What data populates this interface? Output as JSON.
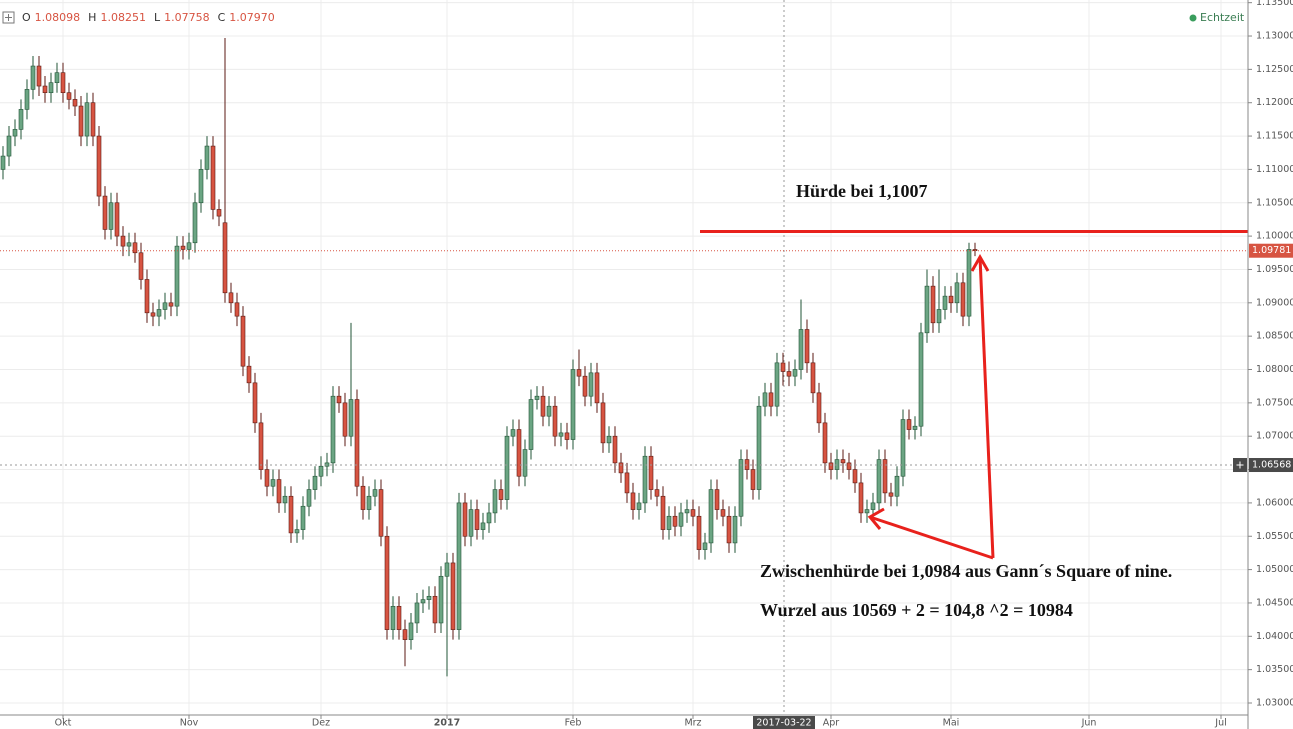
{
  "chart_data": {
    "type": "candlestick",
    "ohlc": [
      {
        "name": "O",
        "label": "1.08098"
      },
      {
        "name": "H",
        "label": "1.08251"
      },
      {
        "name": "L",
        "label": "1.07758"
      },
      {
        "name": "C",
        "label": "1.07970"
      }
    ],
    "realtime_label": "Echtzeit",
    "up_color": "#6ba583",
    "up_border": "#225437",
    "down_color": "#d75442",
    "down_border": "#5b1a13",
    "open": [
      1.11,
      1.112,
      1.115,
      1.116,
      1.119,
      1.122,
      1.1255,
      1.1225,
      1.1215,
      1.123,
      1.1245,
      1.1215,
      1.1205,
      1.1195,
      1.115,
      1.12,
      1.115,
      1.106,
      1.101,
      1.105,
      1.1,
      1.0985,
      1.099,
      1.0975,
      1.0935,
      1.0885,
      1.088,
      1.089,
      1.09,
      1.0895,
      1.0985,
      1.098,
      1.099,
      1.105,
      1.11,
      1.1135,
      1.104,
      1.102,
      1.0915,
      1.09,
      1.088,
      1.0805,
      1.078,
      1.072,
      1.065,
      1.0625,
      1.0635,
      1.06,
      1.061,
      1.0555,
      1.056,
      1.0595,
      1.062,
      1.064,
      1.0655,
      1.066,
      1.076,
      1.075,
      1.07,
      1.0755,
      1.0625,
      1.059,
      1.061,
      1.062,
      1.055,
      1.041,
      1.0445,
      1.041,
      1.0395,
      1.042,
      1.045,
      1.0455,
      1.046,
      1.042,
      1.049,
      1.051,
      1.041,
      1.06,
      1.055,
      1.059,
      1.056,
      1.057,
      1.0585,
      1.062,
      1.0605,
      1.07,
      1.071,
      1.064,
      1.068,
      1.0755,
      1.076,
      1.073,
      1.0745,
      1.07,
      1.0705,
      1.0695,
      1.08,
      1.079,
      1.076,
      1.0795,
      1.075,
      1.069,
      1.07,
      1.066,
      1.0645,
      1.0615,
      1.059,
      1.06,
      1.067,
      1.062,
      1.061,
      1.056,
      1.058,
      1.0565,
      1.0585,
      1.059,
      1.058,
      1.053,
      1.054,
      1.062,
      1.059,
      1.058,
      1.054,
      1.058,
      1.0665,
      1.065,
      1.062,
      1.0745,
      1.0765,
      1.0745,
      1.08098,
      1.0797,
      1.079,
      1.08,
      1.086,
      1.081,
      1.0765,
      1.072,
      1.066,
      1.065,
      1.0665,
      1.066,
      1.065,
      1.063,
      1.0585,
      1.059,
      1.06,
      1.0665,
      1.0615,
      1.061,
      1.064,
      1.0725,
      1.071,
      1.0715,
      1.0855,
      1.0925,
      1.087,
      1.089,
      1.091,
      1.09,
      1.093,
      1.088,
      1.098
    ],
    "high": [
      1.1135,
      1.1165,
      1.1175,
      1.1205,
      1.1235,
      1.127,
      1.127,
      1.124,
      1.1245,
      1.126,
      1.126,
      1.123,
      1.122,
      1.121,
      1.1215,
      1.1215,
      1.1165,
      1.1075,
      1.1065,
      1.1065,
      1.1015,
      1.1005,
      1.1005,
      1.099,
      1.095,
      1.09,
      1.0905,
      1.0915,
      1.0915,
      1.1,
      1.1,
      1.1005,
      1.1065,
      1.1115,
      1.115,
      1.115,
      1.1055,
      1.1297,
      1.093,
      1.0915,
      1.0895,
      1.082,
      1.0795,
      1.0735,
      1.0665,
      1.065,
      1.065,
      1.0625,
      1.0625,
      1.0575,
      1.061,
      1.0635,
      1.0655,
      1.067,
      1.0675,
      1.0775,
      1.0775,
      1.0765,
      1.087,
      1.077,
      1.064,
      1.0625,
      1.0635,
      1.0635,
      1.0565,
      1.046,
      1.046,
      1.0425,
      1.0435,
      1.0465,
      1.047,
      1.0475,
      1.0475,
      1.0505,
      1.0525,
      1.0525,
      1.0615,
      1.0615,
      1.0605,
      1.0605,
      1.0585,
      1.06,
      1.0635,
      1.0635,
      1.0715,
      1.0725,
      1.0725,
      1.0695,
      1.077,
      1.0775,
      1.0775,
      1.076,
      1.076,
      1.072,
      1.072,
      1.0815,
      1.083,
      1.0805,
      1.081,
      1.081,
      1.0765,
      1.0715,
      1.0715,
      1.0675,
      1.066,
      1.063,
      1.0615,
      1.0685,
      1.0685,
      1.0635,
      1.0625,
      1.0595,
      1.0595,
      1.06,
      1.0605,
      1.0605,
      1.0595,
      1.0555,
      1.0635,
      1.0635,
      1.0605,
      1.0595,
      1.0595,
      1.068,
      1.068,
      1.0665,
      1.076,
      1.078,
      1.078,
      1.0825,
      1.08251,
      1.0812,
      1.0815,
      1.0905,
      1.0875,
      1.0825,
      1.078,
      1.0735,
      1.0675,
      1.068,
      1.068,
      1.0675,
      1.0665,
      1.0645,
      1.0605,
      1.0615,
      1.068,
      1.068,
      1.063,
      1.0655,
      1.074,
      1.074,
      1.073,
      1.087,
      1.095,
      1.094,
      1.095,
      1.0925,
      1.0925,
      1.0945,
      1.0945,
      1.099,
      1.099
    ],
    "low": [
      1.1085,
      1.1105,
      1.1135,
      1.1145,
      1.1175,
      1.1205,
      1.121,
      1.12,
      1.12,
      1.1215,
      1.12,
      1.119,
      1.118,
      1.1135,
      1.1135,
      1.1135,
      1.1045,
      1.0995,
      1.0995,
      1.0985,
      1.097,
      1.097,
      1.096,
      1.092,
      1.087,
      1.0865,
      1.0865,
      1.0875,
      1.088,
      1.088,
      1.0965,
      1.0965,
      1.0975,
      1.1035,
      1.1085,
      1.1025,
      1.1015,
      1.09,
      1.0885,
      1.0865,
      1.079,
      1.0765,
      1.0705,
      1.0635,
      1.061,
      1.061,
      1.0585,
      1.0585,
      1.054,
      1.054,
      1.0545,
      1.058,
      1.0605,
      1.0625,
      1.064,
      1.0645,
      1.0735,
      1.0685,
      1.0685,
      1.061,
      1.0575,
      1.0575,
      1.0595,
      1.0535,
      1.0395,
      1.0395,
      1.0395,
      1.0355,
      1.038,
      1.0405,
      1.0435,
      1.044,
      1.0405,
      1.0405,
      1.034,
      1.0395,
      1.0395,
      1.0535,
      1.0535,
      1.0545,
      1.0545,
      1.0555,
      1.057,
      1.059,
      1.059,
      1.0685,
      1.0625,
      1.0625,
      1.0665,
      1.074,
      1.0715,
      1.0715,
      1.0685,
      1.0685,
      1.068,
      1.068,
      1.0775,
      1.0745,
      1.0745,
      1.0735,
      1.0675,
      1.0675,
      1.0645,
      1.063,
      1.06,
      1.0575,
      1.0575,
      1.0585,
      1.0605,
      1.0595,
      1.0545,
      1.0545,
      1.055,
      1.055,
      1.057,
      1.0565,
      1.0515,
      1.0515,
      1.0525,
      1.0575,
      1.0565,
      1.0525,
      1.0525,
      1.0565,
      1.0635,
      1.0605,
      1.0605,
      1.073,
      1.073,
      1.073,
      1.07758,
      1.0775,
      1.0775,
      1.0785,
      1.0795,
      1.075,
      1.0705,
      1.0645,
      1.0635,
      1.0635,
      1.0645,
      1.0635,
      1.0615,
      1.057,
      1.057,
      1.0575,
      1.0585,
      1.06,
      1.0595,
      1.0595,
      1.0625,
      1.0695,
      1.0695,
      1.07,
      1.084,
      1.0855,
      1.0855,
      1.0875,
      1.0885,
      1.0885,
      1.0865,
      1.0865,
      1.097
    ],
    "close": [
      1.112,
      1.115,
      1.116,
      1.119,
      1.122,
      1.1255,
      1.1225,
      1.1215,
      1.123,
      1.1245,
      1.1215,
      1.1205,
      1.1195,
      1.115,
      1.12,
      1.115,
      1.106,
      1.101,
      1.105,
      1.1,
      1.0985,
      1.099,
      1.0975,
      1.0935,
      1.0885,
      1.088,
      1.089,
      1.09,
      1.0895,
      1.0985,
      1.098,
      1.099,
      1.105,
      1.11,
      1.1135,
      1.104,
      1.103,
      1.0915,
      1.09,
      1.088,
      1.0805,
      1.078,
      1.072,
      1.065,
      1.0625,
      1.0635,
      1.06,
      1.061,
      1.0555,
      1.056,
      1.0595,
      1.062,
      1.064,
      1.0655,
      1.066,
      1.076,
      1.075,
      1.07,
      1.0755,
      1.0625,
      1.059,
      1.061,
      1.062,
      1.055,
      1.041,
      1.0445,
      1.041,
      1.0395,
      1.042,
      1.045,
      1.0455,
      1.046,
      1.042,
      1.049,
      1.051,
      1.041,
      1.06,
      1.055,
      1.059,
      1.056,
      1.057,
      1.0585,
      1.062,
      1.0605,
      1.07,
      1.071,
      1.064,
      1.068,
      1.0755,
      1.076,
      1.073,
      1.0745,
      1.07,
      1.0705,
      1.0695,
      1.08,
      1.079,
      1.076,
      1.0795,
      1.075,
      1.069,
      1.07,
      1.066,
      1.0645,
      1.0615,
      1.059,
      1.06,
      1.067,
      1.062,
      1.061,
      1.056,
      1.058,
      1.0565,
      1.0585,
      1.059,
      1.058,
      1.053,
      1.054,
      1.062,
      1.059,
      1.058,
      1.054,
      1.058,
      1.0665,
      1.065,
      1.062,
      1.0745,
      1.0765,
      1.0745,
      1.081,
      1.0797,
      1.079,
      1.08,
      1.086,
      1.081,
      1.0765,
      1.072,
      1.066,
      1.065,
      1.0665,
      1.066,
      1.065,
      1.063,
      1.0585,
      1.059,
      1.06,
      1.0665,
      1.0615,
      1.061,
      1.064,
      1.0725,
      1.071,
      1.0715,
      1.0855,
      1.0925,
      1.087,
      1.089,
      1.091,
      1.09,
      1.093,
      1.088,
      1.098,
      1.09781
    ],
    "last_price_label": "1.09781",
    "crosshair": {
      "price": 1.06568,
      "price_label": "1.06568",
      "date_label": "2017-03-22"
    },
    "hurdle_line": 1.1007,
    "hurdle_color": "#e8211c",
    "annotations": [
      "Hürde bei 1,1007",
      "Zwischenhürde bei 1,0984 aus Gann´s Square of nine.",
      "Wurzel aus 10569 + 2 = 104,8 ^2 = 10984"
    ],
    "ylim": [
      1.0282,
      1.1354
    ],
    "yticks": [
      {
        "value": 1.03,
        "label": "1.03000"
      },
      {
        "value": 1.035,
        "label": "1.03500"
      },
      {
        "value": 1.04,
        "label": "1.04000"
      },
      {
        "value": 1.045,
        "label": "1.04500"
      },
      {
        "value": 1.05,
        "label": "1.05000"
      },
      {
        "value": 1.055,
        "label": "1.05500"
      },
      {
        "value": 1.06,
        "label": "1.06000"
      },
      {
        "value": 1.065,
        "label": "1.06500"
      },
      {
        "value": 1.07,
        "label": "1.07000"
      },
      {
        "value": 1.075,
        "label": "1.07500"
      },
      {
        "value": 1.08,
        "label": "1.08000"
      },
      {
        "value": 1.085,
        "label": "1.08500"
      },
      {
        "value": 1.09,
        "label": "1.09000"
      },
      {
        "value": 1.095,
        "label": "1.09500"
      },
      {
        "value": 1.1,
        "label": "1.10000"
      },
      {
        "value": 1.105,
        "label": "1.10500"
      },
      {
        "value": 1.11,
        "label": "1.11000"
      },
      {
        "value": 1.115,
        "label": "1.11500"
      },
      {
        "value": 1.12,
        "label": "1.12000"
      },
      {
        "value": 1.125,
        "label": "1.12500"
      },
      {
        "value": 1.13,
        "label": "1.13000"
      },
      {
        "value": 1.135,
        "label": "1.13500"
      }
    ],
    "xticks": [
      {
        "value": 10,
        "label": "Okt"
      },
      {
        "value": 31,
        "label": "Nov"
      },
      {
        "value": 53,
        "label": "Dez"
      },
      {
        "value": 74,
        "label": "2017"
      },
      {
        "value": 95,
        "label": "Feb"
      },
      {
        "value": 115,
        "label": "Mrz"
      },
      {
        "value": 138,
        "label": "Apr"
      },
      {
        "value": 158,
        "label": "Mai"
      },
      {
        "value": 181,
        "label": "Jun"
      },
      {
        "value": 203,
        "label": "Jul"
      }
    ],
    "grid": true
  }
}
